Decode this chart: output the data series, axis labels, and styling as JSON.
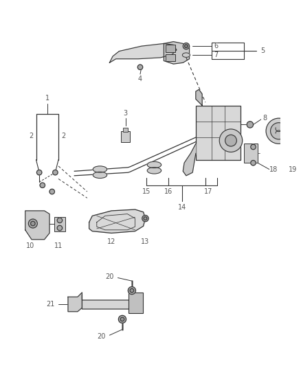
{
  "background_color": "#ffffff",
  "line_color": "#333333",
  "label_color": "#555555",
  "figsize": [
    4.38,
    5.33
  ],
  "dpi": 100
}
